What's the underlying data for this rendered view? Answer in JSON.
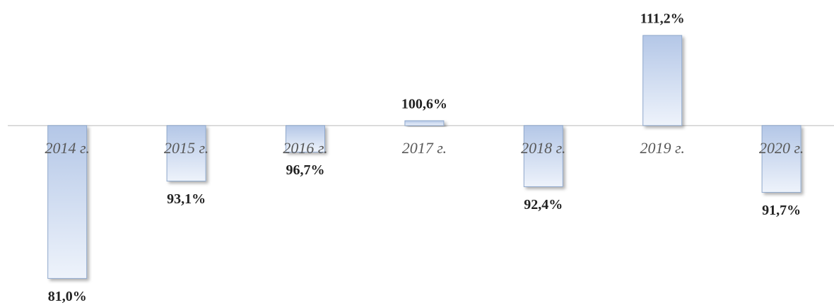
{
  "chart_data": {
    "type": "bar",
    "categories": [
      "2014 г.",
      "2015 г.",
      "2016 г.",
      "2017 г.",
      "2018 г.",
      "2019 г.",
      "2020 г."
    ],
    "values": [
      81.0,
      93.1,
      96.7,
      100.6,
      92.4,
      111.2,
      91.7
    ],
    "value_labels": [
      "81,0%",
      "93,1%",
      "96,7%",
      "100,6%",
      "92,4%",
      "111,2%",
      "91,7%"
    ],
    "baseline": 100,
    "ylim": [
      77.7,
      115.6
    ],
    "color": "#b9cbe8"
  }
}
